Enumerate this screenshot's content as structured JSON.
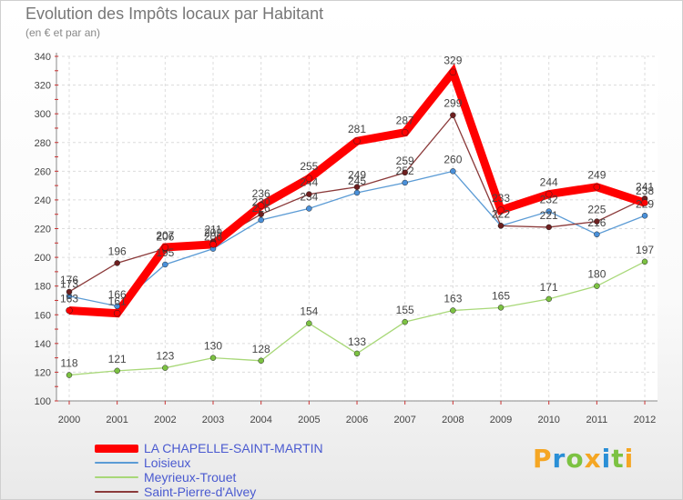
{
  "header": {
    "title": "Evolution des Impôts locaux par Habitant",
    "subtitle": "(en € et par an)"
  },
  "logo": {
    "text": "Proxiti",
    "letters": [
      {
        "char": "P",
        "color": "#f5a623"
      },
      {
        "char": "r",
        "color": "#2a8fd6"
      },
      {
        "char": "o",
        "color": "#7cc242"
      },
      {
        "char": "x",
        "color": "#f5a623"
      },
      {
        "char": "i",
        "color": "#2a8fd6"
      },
      {
        "char": "t",
        "color": "#7cc242"
      },
      {
        "char": "i",
        "color": "#f5a623"
      }
    ]
  },
  "chart_data": {
    "type": "line",
    "title": "Evolution des Impôts locaux par Habitant",
    "subtitle": "(en € et par an)",
    "x": [
      "2000",
      "2001",
      "2002",
      "2003",
      "2004",
      "2005",
      "2006",
      "2007",
      "2008",
      "2009",
      "2010",
      "2011",
      "2012"
    ],
    "ylim": [
      100,
      340
    ],
    "yticks": [
      100,
      120,
      140,
      160,
      180,
      200,
      220,
      240,
      260,
      280,
      300,
      320,
      340
    ],
    "grid": true,
    "legend_position": "bottom-left",
    "series": [
      {
        "name": "Loisieux",
        "color": "#5b9bd5",
        "marker": "#4a90d9",
        "values": [
          173,
          166,
          195,
          206,
          226,
          234,
          245,
          252,
          260,
          222,
          232,
          216,
          229
        ]
      },
      {
        "name": "Meyrieux-Trouet",
        "color": "#a8d878",
        "marker": "#7cc242",
        "values": [
          118,
          121,
          123,
          130,
          128,
          154,
          133,
          155,
          163,
          165,
          171,
          180,
          197
        ]
      },
      {
        "name": "Saint-Pierre-d'Alvey",
        "color": "#8b3a3a",
        "marker": "#6e1f1f",
        "values": [
          176,
          196,
          206,
          211,
          230,
          244,
          249,
          259,
          299,
          222,
          221,
          225,
          241
        ]
      },
      {
        "name": "LA CHAPELLE-SAINT-MARTIN",
        "color": "#ff0000",
        "marker": "#ff0000",
        "thick": true,
        "values": [
          163,
          161,
          207,
          209,
          236,
          255,
          281,
          287,
          329,
          233,
          244,
          249,
          238
        ]
      }
    ],
    "legend_order": [
      "LA CHAPELLE-SAINT-MARTIN",
      "Loisieux",
      "Meyrieux-Trouet",
      "Saint-Pierre-d'Alvey"
    ],
    "legend_colors": {
      "LA CHAPELLE-SAINT-MARTIN": "#4a5ad0",
      "Loisieux": "#4a5ad0",
      "Meyrieux-Trouet": "#4a5ad0",
      "Saint-Pierre-d'Alvey": "#4a5ad0"
    }
  }
}
